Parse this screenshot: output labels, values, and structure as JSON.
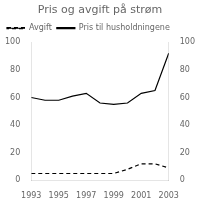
{
  "chart_data": {
    "type": "line",
    "title": "Pris og avgift på strøm",
    "x": [
      1993,
      1994,
      1995,
      1996,
      1997,
      1998,
      1999,
      2000,
      2001,
      2002,
      2003
    ],
    "series": [
      {
        "name": "Pris til husholdningene",
        "color": "#000000",
        "line_style": "solid",
        "values": [
          60,
          58,
          58,
          61,
          63,
          56,
          55,
          56,
          63,
          65,
          92
        ]
      },
      {
        "name": "Avgift",
        "color": "#000000",
        "line_style": "dashed",
        "values": [
          5,
          5,
          5,
          5,
          5,
          5,
          5,
          8,
          12,
          12,
          9
        ]
      }
    ],
    "xlim": [
      1993,
      2003
    ],
    "xticks": [
      1993,
      1995,
      1997,
      1999,
      2001,
      2003
    ],
    "ylim": [
      0,
      100
    ],
    "yticks": [
      0,
      20,
      40,
      60,
      80,
      100
    ],
    "y2lim": [
      0,
      100
    ],
    "y2ticks": [
      0,
      20,
      40,
      60,
      80,
      100
    ],
    "grid": false,
    "legend": "upper left"
  }
}
